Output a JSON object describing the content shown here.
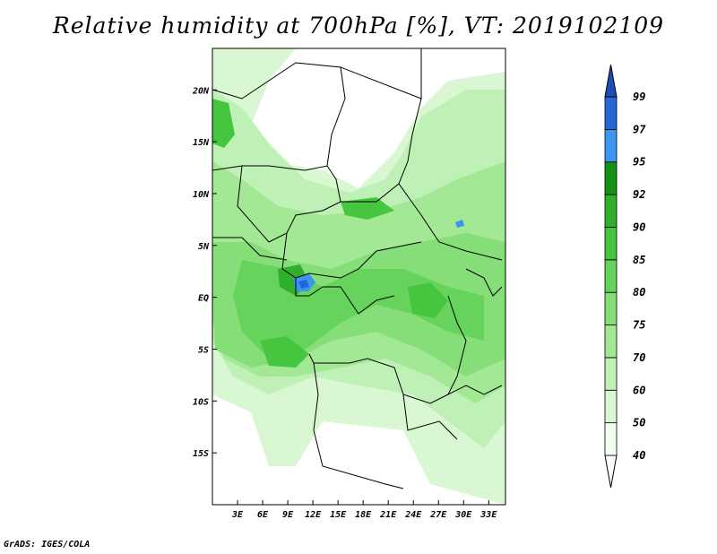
{
  "title": "Relative humidity at 700hPa [%], VT: 2019102109",
  "credit": "GrADS: IGES/COLA",
  "map": {
    "lon_range": [
      0,
      35
    ],
    "lat_range": [
      -20,
      24
    ],
    "lon_ticks": [
      "3E",
      "6E",
      "9E",
      "12E",
      "15E",
      "18E",
      "21E",
      "24E",
      "27E",
      "30E",
      "33E"
    ],
    "lat_ticks": [
      "20N",
      "15N",
      "10N",
      "5N",
      "EQ",
      "5S",
      "10S",
      "15S"
    ]
  },
  "colorbar": {
    "levels": [
      "40",
      "50",
      "60",
      "70",
      "75",
      "80",
      "85",
      "90",
      "92",
      "95",
      "97",
      "99"
    ],
    "colors": [
      "#f0fff0",
      "#d9f7d2",
      "#bff0b5",
      "#a2e895",
      "#85de78",
      "#66d35c",
      "#46c53f",
      "#2eb02b",
      "#149214",
      "#3c96f0",
      "#2466d8",
      "#1c4fb5"
    ],
    "low_color": "#ffffff",
    "high_color": "#1c4fb5"
  }
}
